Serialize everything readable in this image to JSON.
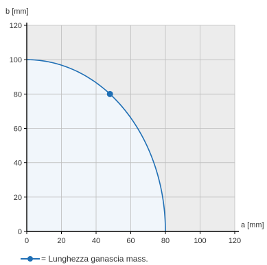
{
  "chart_data": {
    "type": "line",
    "ylabel": "b [mm]",
    "xlabel": "a [mm]",
    "xlim": [
      0,
      120
    ],
    "ylim": [
      0,
      120
    ],
    "x_ticks": [
      0,
      20,
      40,
      60,
      80,
      100,
      120
    ],
    "y_ticks": [
      0,
      20,
      40,
      60,
      80,
      100,
      120
    ],
    "grid": true,
    "series": [
      {
        "name": "= Lunghezza ganascia mass.",
        "curve": "quarter-ellipse",
        "x": [
          0,
          10,
          20,
          30,
          40,
          48,
          55,
          60,
          65,
          70,
          75,
          78,
          80
        ],
        "y": [
          100,
          99.2,
          96.8,
          92.7,
          86.6,
          80,
          72.6,
          66.1,
          58.3,
          48.4,
          34.8,
          22.2,
          0
        ]
      }
    ],
    "marker": {
      "x": 48,
      "y": 80
    },
    "legend": {
      "placement": "bottom-left",
      "label": "= Lunghezza ganascia mass."
    },
    "colors": {
      "line": "#1f6fb5",
      "fill_under": "#f1f6fb",
      "outside_region": "#ececec",
      "grid": "#bdbdbd",
      "axis": "#000000"
    }
  }
}
